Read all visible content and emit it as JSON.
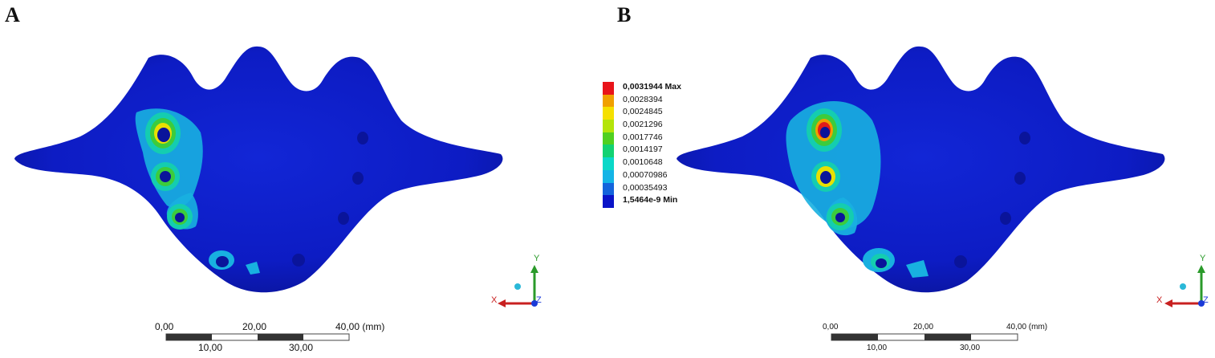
{
  "panels": [
    {
      "letter": "A",
      "scale": {
        "top": [
          "0,00",
          "20,00",
          "40,00 (mm)"
        ],
        "bottom": [
          "10,00",
          "30,00"
        ]
      },
      "triad": {
        "y": "Y",
        "x": "X",
        "z": "Z"
      }
    },
    {
      "letter": "B",
      "scale": {
        "top": [
          "0,00",
          "20,00",
          "40,00 (mm)"
        ],
        "bottom": [
          "10,00",
          "30,00"
        ]
      },
      "triad": {
        "y": "Y",
        "x": "X",
        "z": "Z"
      }
    }
  ],
  "legend": {
    "items": [
      {
        "label": "0,0031944 Max",
        "color": "#e8141a",
        "bold": true
      },
      {
        "label": "0,0028394",
        "color": "#f0a000",
        "bold": false
      },
      {
        "label": "0,0024845",
        "color": "#f5e000",
        "bold": false
      },
      {
        "label": "0,0021296",
        "color": "#b4e40a",
        "bold": false
      },
      {
        "label": "0,0017746",
        "color": "#50d020",
        "bold": false
      },
      {
        "label": "0,0014197",
        "color": "#12d272",
        "bold": false
      },
      {
        "label": "0,0010648",
        "color": "#0ad8c8",
        "bold": false
      },
      {
        "label": "0,00070986",
        "color": "#14b4e6",
        "bold": false
      },
      {
        "label": "0,00035493",
        "color": "#1464dc",
        "bold": false
      },
      {
        "label": "1,5464e-9 Min",
        "color": "#0a14c8",
        "bold": true
      }
    ]
  },
  "colors": {
    "model_base": "#0d1cc4",
    "model_shadow": "#0a149a",
    "hotspot_cyan": "#18b0e0",
    "hotspot_teal": "#14cdb0",
    "hotspot_green": "#3ccc3c",
    "hotspot_yellow": "#e8e000",
    "hotspot_orange": "#f0a000",
    "hotspot_red": "#e21a1a",
    "axis_y": "#2a9a2a",
    "axis_x": "#c82020",
    "axis_z": "#1a3ad8",
    "triad_sphere": "#2ab8d8"
  }
}
